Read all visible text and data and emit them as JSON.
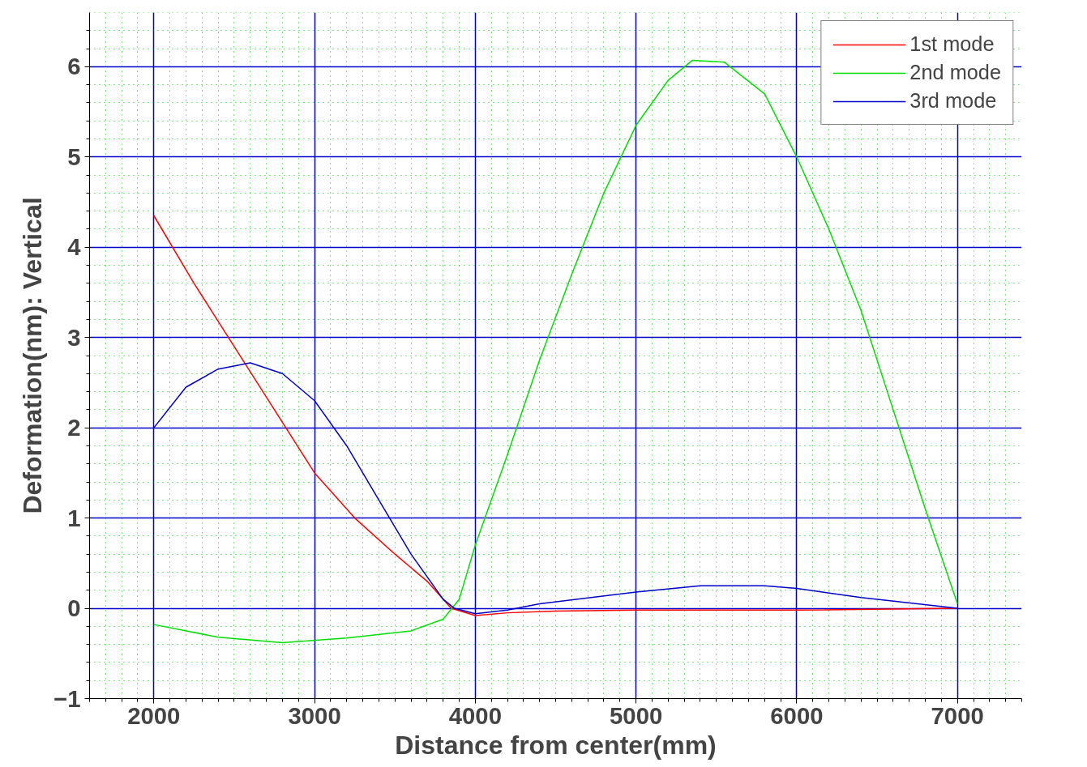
{
  "chart_data": {
    "type": "line",
    "xlabel": "Distance from center(mm)",
    "ylabel": "Deformation(nm): Vertical",
    "xlim": [
      1600,
      7400
    ],
    "ylim": [
      -1,
      6.6
    ],
    "xticks": [
      2000,
      3000,
      4000,
      5000,
      6000,
      7000
    ],
    "yticks": [
      -1,
      0,
      1,
      2,
      3,
      4,
      5,
      6
    ],
    "grid": true,
    "legend": "top right",
    "line_style": "solid",
    "series": [
      {
        "name": "1st mode",
        "color": "#ff0000",
        "x": [
          2000,
          2250,
          2500,
          2750,
          3000,
          3250,
          3500,
          3700,
          3850,
          4000,
          4200,
          4500,
          5000,
          6000,
          7000
        ],
        "values": [
          4.35,
          3.6,
          2.9,
          2.2,
          1.5,
          1.0,
          0.6,
          0.3,
          0.0,
          -0.08,
          -0.05,
          -0.03,
          -0.02,
          -0.02,
          0.0
        ]
      },
      {
        "name": "2nd mode",
        "color": "#00e000",
        "x": [
          2000,
          2400,
          2800,
          3200,
          3600,
          3800,
          3900,
          4000,
          4200,
          4400,
          4600,
          4800,
          5000,
          5200,
          5350,
          5550,
          5800,
          6000,
          6200,
          6400,
          6600,
          6800,
          7000
        ],
        "values": [
          -0.18,
          -0.32,
          -0.38,
          -0.33,
          -0.25,
          -0.12,
          0.1,
          0.7,
          1.7,
          2.75,
          3.7,
          4.6,
          5.35,
          5.85,
          6.07,
          6.05,
          5.7,
          5.0,
          4.2,
          3.3,
          2.2,
          1.1,
          0.05
        ]
      },
      {
        "name": "3rd mode",
        "color": "#0000cc",
        "x": [
          2000,
          2200,
          2400,
          2600,
          2800,
          3000,
          3200,
          3400,
          3600,
          3800,
          3870,
          4000,
          4200,
          4400,
          5000,
          5400,
          5800,
          6000,
          6400,
          7000
        ],
        "values": [
          2.0,
          2.45,
          2.65,
          2.72,
          2.6,
          2.3,
          1.8,
          1.2,
          0.6,
          0.1,
          0.0,
          -0.06,
          -0.02,
          0.05,
          0.18,
          0.25,
          0.25,
          0.22,
          0.12,
          0.0
        ]
      }
    ]
  }
}
